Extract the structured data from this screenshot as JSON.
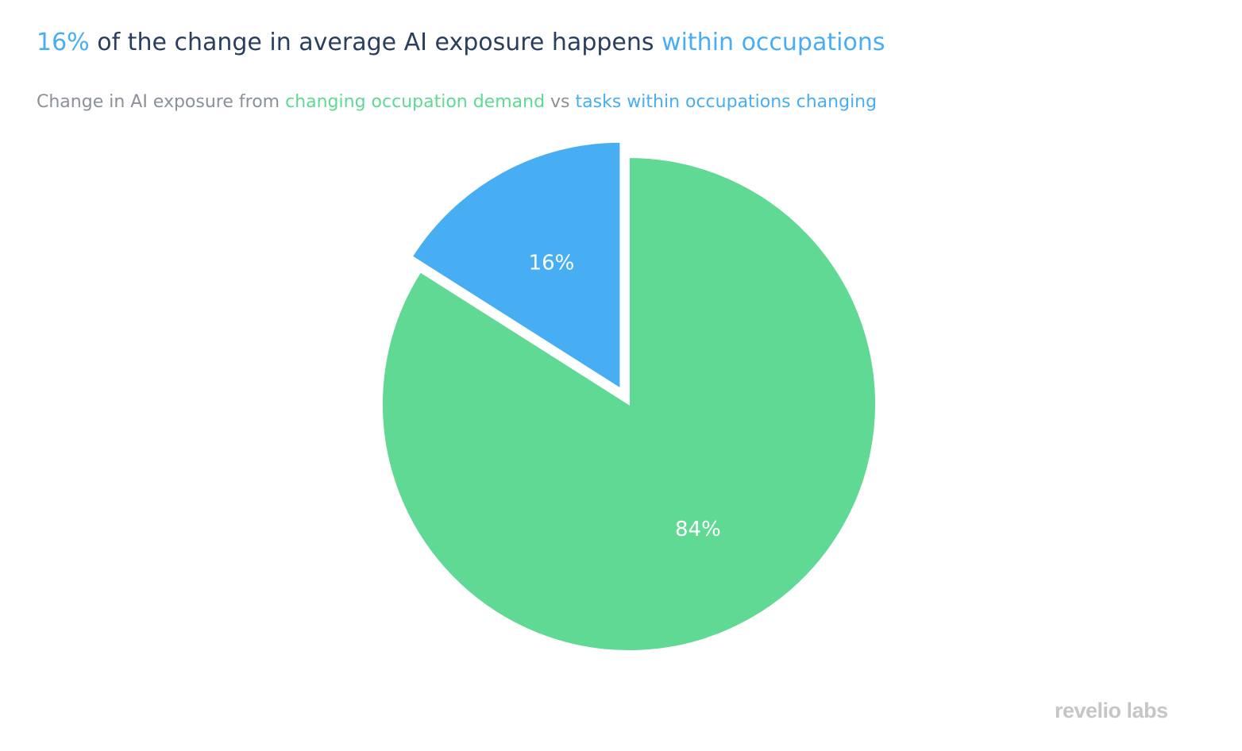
{
  "header": {
    "title": {
      "part1": "16%",
      "part2": " of the change in average AI exposure happens ",
      "part3": "within occupations"
    },
    "subtitle": {
      "part1": "Change in AI exposure from ",
      "part2": "changing occupation demand",
      "part3": " vs ",
      "part4": "tasks within occupations changing"
    }
  },
  "colors": {
    "within_occupations": "#48aef3",
    "occupation_demand": "#5fd993",
    "title_text": "#2a3f5f",
    "subtitle_text": "#8a9199"
  },
  "chart_data": {
    "type": "pie",
    "slices": [
      {
        "key": "tasks within occupations changing",
        "value": 16,
        "label": "16%",
        "color": "#48aef3",
        "pulled": true
      },
      {
        "key": "changing occupation demand",
        "value": 84,
        "label": "84%",
        "color": "#5fd993",
        "pulled": false
      }
    ],
    "direction": "counterclockwise",
    "start": "12 o'clock",
    "legend": "none"
  },
  "branding": {
    "logo": "revelio labs"
  }
}
